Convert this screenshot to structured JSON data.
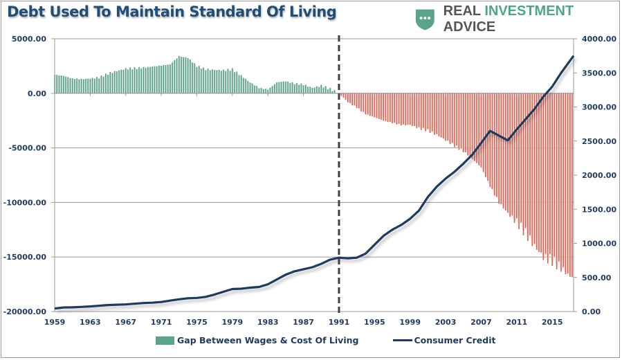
{
  "title": "Debt Used To Maintain Standard Of Living",
  "brand": {
    "word1": "REAL",
    "word2": "INVESTMENT",
    "word3": "ADVICE",
    "icon": "shield-chat-icon",
    "accent_color": "#4ea68a"
  },
  "colors": {
    "positive_bar": "#4f9e86",
    "negative_bar": "#e0604f",
    "line": "#1f3a5f",
    "divider": "#404040",
    "grid": "#9a9a9a"
  },
  "chart_data": {
    "type": "bar+line",
    "title": "Debt Used To Maintain Standard Of Living",
    "xlabel": "",
    "x_tick_labels": [
      "1959",
      "1963",
      "1967",
      "1971",
      "1975",
      "1979",
      "1983",
      "1987",
      "1991",
      "1995",
      "1999",
      "2003",
      "2007",
      "2011",
      "2015"
    ],
    "x_range": [
      1959,
      2017.4
    ],
    "left_axis": {
      "label": "",
      "range": [
        -20000,
        5000
      ],
      "ticks": [
        "5000.00",
        "0.00",
        "-5000.00",
        "-10000.00",
        "-15000.00",
        "-20000.00"
      ]
    },
    "right_axis": {
      "label": "",
      "range": [
        0,
        4000
      ],
      "ticks": [
        "4000.00",
        "3500.00",
        "3000.00",
        "2500.00",
        "2000.00",
        "1500.00",
        "1000.00",
        "500.00",
        "0.00"
      ]
    },
    "grid": true,
    "legend_position": "bottom",
    "vertical_marker": {
      "x": 1991,
      "style": "dashed"
    },
    "series": [
      {
        "name": "Gap Between Wages & Cost Of Living",
        "type": "bar",
        "axis": "left",
        "x": [
          1959,
          1960,
          1961,
          1962,
          1963,
          1964,
          1965,
          1966,
          1967,
          1968,
          1969,
          1970,
          1971,
          1972,
          1973,
          1974,
          1975,
          1976,
          1977,
          1978,
          1979,
          1980,
          1981,
          1982,
          1983,
          1984,
          1985,
          1986,
          1987,
          1988,
          1989,
          1990,
          1991,
          1992,
          1993,
          1994,
          1995,
          1996,
          1997,
          1998,
          1999,
          2000,
          2001,
          2002,
          2003,
          2004,
          2005,
          2006,
          2007,
          2008,
          2009,
          2010,
          2011,
          2012,
          2013,
          2014,
          2015,
          2016,
          2017
        ],
        "values": [
          1700,
          1600,
          1350,
          1300,
          1350,
          1450,
          1800,
          2050,
          2250,
          2300,
          2350,
          2450,
          2550,
          2650,
          3400,
          3250,
          2500,
          2200,
          2150,
          2100,
          2200,
          1600,
          1000,
          500,
          350,
          1000,
          1100,
          900,
          800,
          500,
          700,
          400,
          0,
          -800,
          -1300,
          -1900,
          -2200,
          -2500,
          -2700,
          -2900,
          -2900,
          -3200,
          -3400,
          -3800,
          -4300,
          -4800,
          -5300,
          -6000,
          -6800,
          -8500,
          -10000,
          -11000,
          -11800,
          -12800,
          -14000,
          -15000,
          -15300,
          -16000,
          -16800
        ]
      },
      {
        "name": "Consumer Credit",
        "type": "line",
        "axis": "right",
        "x": [
          1959,
          1960,
          1961,
          1962,
          1963,
          1964,
          1965,
          1966,
          1967,
          1968,
          1969,
          1970,
          1971,
          1972,
          1973,
          1974,
          1975,
          1976,
          1977,
          1978,
          1979,
          1980,
          1981,
          1982,
          1983,
          1984,
          1985,
          1986,
          1987,
          1988,
          1989,
          1990,
          1991,
          1992,
          1993,
          1994,
          1995,
          1996,
          1997,
          1998,
          1999,
          2000,
          2001,
          2002,
          2003,
          2004,
          2005,
          2006,
          2007,
          2008,
          2009,
          2010,
          2011,
          2012,
          2013,
          2014,
          2015,
          2016,
          2017.4
        ],
        "values": [
          45,
          60,
          62,
          68,
          75,
          85,
          95,
          100,
          105,
          115,
          125,
          130,
          140,
          160,
          180,
          195,
          200,
          215,
          250,
          290,
          330,
          335,
          350,
          360,
          400,
          470,
          540,
          590,
          620,
          650,
          700,
          760,
          790,
          780,
          790,
          850,
          980,
          1110,
          1200,
          1270,
          1360,
          1480,
          1680,
          1830,
          1950,
          2050,
          2170,
          2300,
          2470,
          2650,
          2580,
          2510,
          2670,
          2820,
          2970,
          3150,
          3300,
          3500,
          3750
        ]
      }
    ]
  },
  "legend": {
    "bar_label": "Gap Between Wages & Cost Of Living",
    "line_label": "Consumer Credit"
  }
}
